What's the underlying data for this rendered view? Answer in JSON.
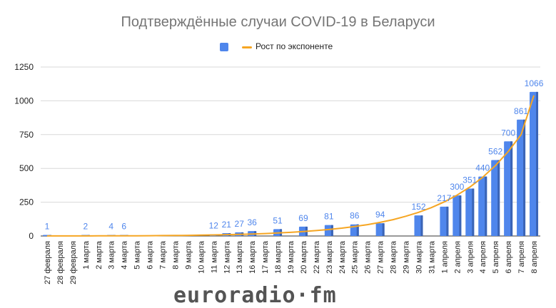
{
  "page": {
    "title": "Подтверждённые случаи COVID-19 в Беларуси"
  },
  "legend": {
    "bars_label": "",
    "line_label": "Рост по экспоненте"
  },
  "watermark": {
    "text": "euroradio·fm"
  },
  "colors": {
    "bar": "#4f86ec",
    "bar_shade": "#3a64b6",
    "line": "#f6a623",
    "data_label": "#4f86ec",
    "grid": "#d9d9d9",
    "axis_text": "#222222",
    "title": "#757575",
    "watermark": "#545454"
  },
  "chart_data": {
    "type": "bar",
    "title": "Подтверждённые случаи COVID-19 в Беларуси",
    "xlabel": "",
    "ylabel": "",
    "ylim": [
      0,
      1250
    ],
    "yticks": [
      0,
      250,
      500,
      750,
      1000,
      1250
    ],
    "grid": true,
    "legend_position": "top-center",
    "categories": [
      "27 февраля",
      "28 февраля",
      "29 февраля",
      "1 марта",
      "2 марта",
      "3 марта",
      "4 марта",
      "5 марта",
      "6 марта",
      "7 марта",
      "8 марта",
      "9 марта",
      "10 марта",
      "11 марта",
      "12 марта",
      "13 марта",
      "16 марта",
      "17 марта",
      "18 марта",
      "19 марта",
      "20 марта",
      "22 марта",
      "23 марта",
      "24 марта",
      "25 марта",
      "26 марта",
      "27 марта",
      "28 марта",
      "29 марта",
      "30 марта",
      "31 марта",
      "1 апреля",
      "2 апреля",
      "3 апреля",
      "4 апреля",
      "5 апреля",
      "6 апреля",
      "7 апреля",
      "8 апреля"
    ],
    "series": [
      {
        "type": "bar",
        "values": [
          1,
          null,
          null,
          2,
          null,
          4,
          6,
          null,
          null,
          null,
          null,
          null,
          null,
          12,
          21,
          27,
          36,
          null,
          51,
          null,
          69,
          null,
          81,
          null,
          86,
          null,
          94,
          null,
          null,
          152,
          null,
          217,
          300,
          351,
          440,
          562,
          700,
          861,
          1066
        ],
        "data_labels": [
          "1",
          "",
          "",
          "2",
          "",
          "4",
          "6",
          "",
          "",
          "",
          "",
          "",
          "",
          "12",
          "21",
          "27",
          "36",
          "",
          "51",
          "",
          "69",
          "",
          "81",
          "",
          "86",
          "",
          "94",
          "",
          "",
          "152",
          "",
          "217",
          "300",
          "351",
          "440",
          "562",
          "700",
          "861",
          "1066"
        ]
      },
      {
        "type": "line",
        "name": "Рост по экспоненте",
        "values": [
          0.3,
          0.4,
          0.5,
          0.7,
          0.9,
          1.1,
          1.4,
          1.8,
          2.3,
          3,
          3.9,
          5,
          6.5,
          8,
          10,
          12,
          15,
          18,
          22,
          27,
          33,
          40,
          48,
          58,
          70,
          84,
          101,
          121,
          146,
          175,
          210,
          252,
          302,
          362,
          434,
          521,
          625,
          750,
          1040
        ]
      }
    ]
  }
}
